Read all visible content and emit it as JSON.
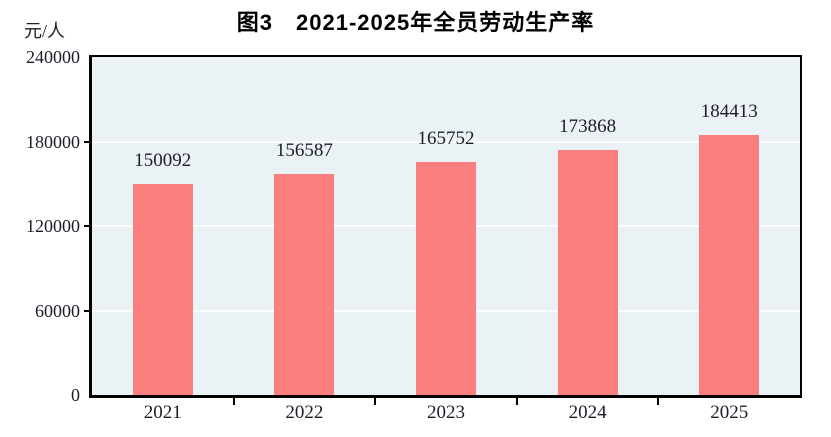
{
  "chart_data": {
    "type": "bar",
    "title": "图3　2021-2025年全员劳动生产率",
    "unit_label": "元/人",
    "categories": [
      "2021",
      "2022",
      "2023",
      "2024",
      "2025"
    ],
    "values": [
      150092,
      156587,
      165752,
      173868,
      184413
    ],
    "data_labels": [
      "150092",
      "156587",
      "165752",
      "173868",
      "184413"
    ],
    "xlabel": "",
    "ylabel": "元/人",
    "ylim": [
      0,
      240000
    ],
    "yticks": [
      0,
      60000,
      120000,
      180000,
      240000
    ],
    "ytick_labels": [
      "0",
      "60000",
      "120000",
      "180000",
      "240000"
    ],
    "legend": "none",
    "grid": "horizontal",
    "colors": {
      "bar": "#fa7e7e",
      "plot_background": "#eaf2f6",
      "gridline": "#fdfefe",
      "axis": "#000000",
      "text": "#1d1d29",
      "title": "#000000"
    }
  }
}
